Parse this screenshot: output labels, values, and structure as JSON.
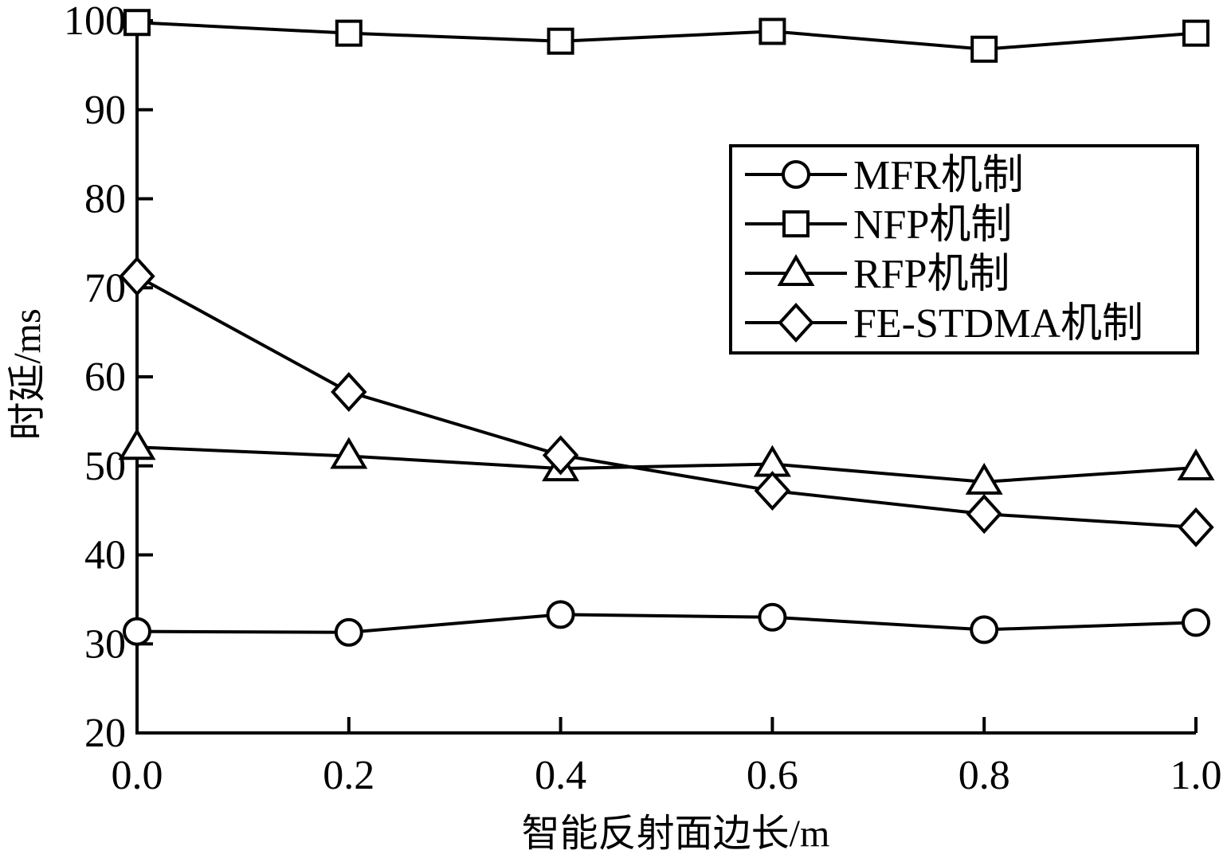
{
  "chart_data": {
    "type": "line",
    "xlabel": "智能反射面边长/m",
    "ylabel": "时延/ms",
    "xlim": [
      0.0,
      1.0
    ],
    "ylim": [
      20,
      100
    ],
    "x": [
      0.0,
      0.2,
      0.4,
      0.6,
      0.8,
      1.0
    ],
    "xticks": [
      0.0,
      0.2,
      0.4,
      0.6,
      0.8,
      1.0
    ],
    "xtick_labels": [
      "0.0",
      "0.2",
      "0.4",
      "0.6",
      "0.8",
      "1.0"
    ],
    "yticks": [
      20,
      30,
      40,
      50,
      60,
      70,
      80,
      90,
      100
    ],
    "ytick_labels": [
      "20",
      "30",
      "40",
      "50",
      "60",
      "70",
      "80",
      "90",
      "100"
    ],
    "grid": false,
    "legend_position": "top-right",
    "series": [
      {
        "name": "MFR机制",
        "marker": "circle",
        "color": "#000000",
        "values": [
          31.4,
          31.3,
          33.3,
          33.0,
          31.6,
          32.4
        ]
      },
      {
        "name": "NFP机制",
        "marker": "square",
        "color": "#000000",
        "values": [
          99.8,
          98.6,
          97.7,
          98.8,
          96.8,
          98.6
        ]
      },
      {
        "name": "RFP机制",
        "marker": "triangle",
        "color": "#000000",
        "values": [
          52.1,
          51.1,
          49.7,
          50.2,
          48.2,
          49.8
        ]
      },
      {
        "name": "FE-STDMA机制",
        "marker": "diamond",
        "color": "#000000",
        "values": [
          71.3,
          58.3,
          51.2,
          47.2,
          44.6,
          43.1
        ]
      }
    ]
  }
}
